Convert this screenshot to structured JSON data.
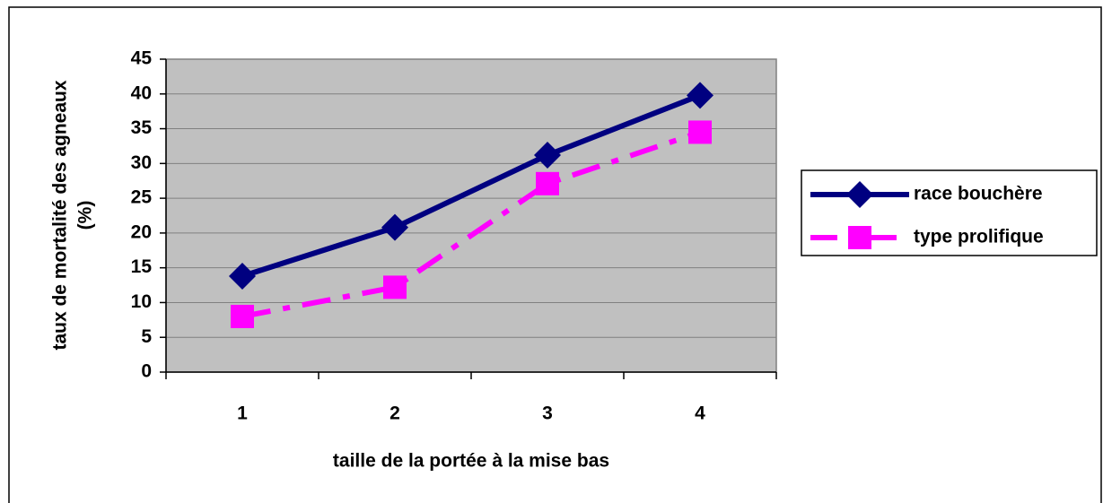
{
  "chart_data": {
    "type": "line",
    "categories": [
      "1",
      "2",
      "3",
      "4"
    ],
    "xlabel": "taille de la portée à la mise bas",
    "ylabel": [
      "taux de mortalité des agneaux",
      "(%)"
    ],
    "ylim": [
      0,
      45
    ],
    "yticks": [
      0,
      5,
      10,
      15,
      20,
      25,
      30,
      35,
      40,
      45
    ],
    "grid": true,
    "legend": "right",
    "series": [
      {
        "name": "race bouchère",
        "color": "#000080",
        "marker": "diamond",
        "line": "solid",
        "values": [
          13.8,
          20.8,
          31.2,
          39.8
        ]
      },
      {
        "name": "type prolifique",
        "color": "#ff00ff",
        "marker": "square",
        "line": "dashdot",
        "values": [
          8.0,
          12.2,
          27.1,
          34.5
        ]
      }
    ]
  }
}
